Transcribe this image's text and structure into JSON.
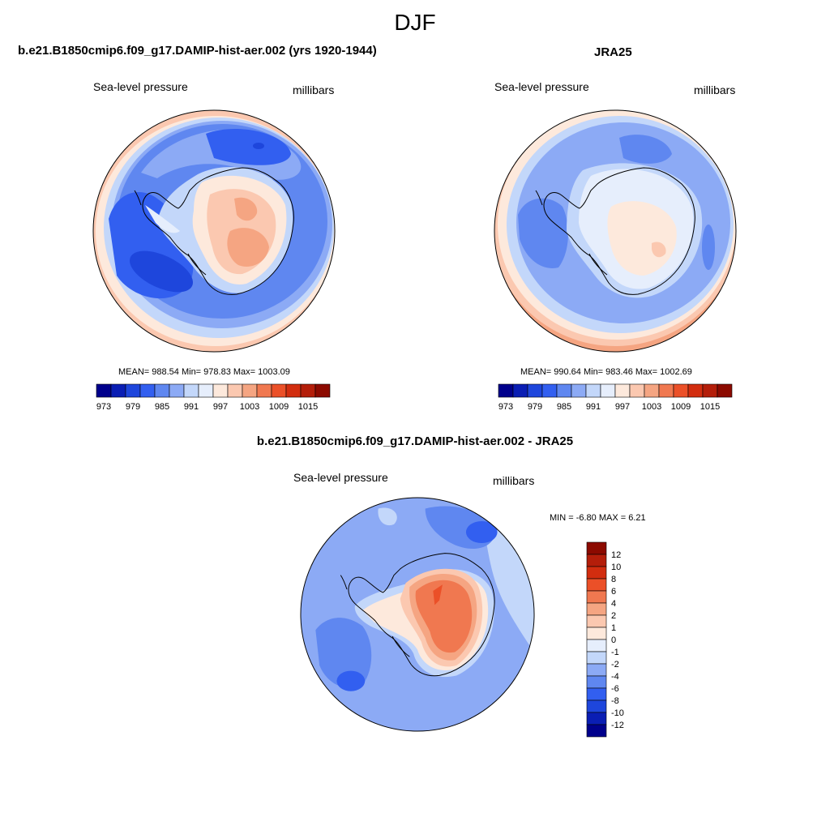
{
  "figure_title": "DJF",
  "panel_model": {
    "title": "b.e21.B1850cmip6.f09_g17.DAMIP-hist-aer.002 (yrs 1920-1944)",
    "field_label": "Sea-level pressure",
    "units": "millibars",
    "stats": "MEAN= 988.54  Min= 978.83  Max= 1003.09"
  },
  "panel_obs": {
    "title": "JRA25",
    "field_label": "Sea-level pressure",
    "units": "millibars",
    "stats": "MEAN= 990.64  Min= 983.46  Max= 1002.69"
  },
  "panel_diff": {
    "title": "b.e21.B1850cmip6.f09_g17.DAMIP-hist-aer.002 - JRA25",
    "field_label": "Sea-level pressure",
    "units": "millibars",
    "stats": "MIN =  -6.80 MAX =   6.21"
  },
  "colorbar_abs": {
    "colors": [
      "#00008c",
      "#0a1eb4",
      "#1e46dc",
      "#325ff0",
      "#5f87f0",
      "#8caaf5",
      "#c3d7fa",
      "#e6eefc",
      "#fde9dc",
      "#fbc8b0",
      "#f5a582",
      "#f07850",
      "#eb5028",
      "#d22d0f",
      "#b41e0a",
      "#8c0a00"
    ],
    "tick_labels": [
      "973",
      "979",
      "985",
      "991",
      "997",
      "1003",
      "1009",
      "1015"
    ]
  },
  "colorbar_diff": {
    "colors": [
      "#8c0a00",
      "#b41e0a",
      "#d22d0f",
      "#eb5028",
      "#f07850",
      "#f5a582",
      "#fbc8b0",
      "#fde9dc",
      "#e6eefc",
      "#c3d7fa",
      "#8caaf5",
      "#5f87f0",
      "#325ff0",
      "#1e46dc",
      "#0a1eb4",
      "#00008c"
    ],
    "tick_labels": [
      "12",
      "10",
      "8",
      "6",
      "4",
      "2",
      "1",
      "0",
      "-1",
      "-2",
      "-4",
      "-6",
      "-8",
      "-10",
      "-12"
    ]
  },
  "chart_data": [
    {
      "type": "heatmap",
      "title": "b.e21.B1850cmip6.f09_g17.DAMIP-hist-aer.002 (yrs 1920-1944)",
      "variable": "Sea-level pressure",
      "units": "millibars",
      "season": "DJF",
      "projection": "south polar stereographic",
      "mean": 988.54,
      "min": 978.83,
      "max": 1003.09,
      "contour_levels": [
        973,
        976,
        979,
        982,
        985,
        988,
        991,
        994,
        997,
        1000,
        1003,
        1006,
        1009,
        1012,
        1015
      ]
    },
    {
      "type": "heatmap",
      "title": "JRA25",
      "variable": "Sea-level pressure",
      "units": "millibars",
      "season": "DJF",
      "projection": "south polar stereographic",
      "mean": 990.64,
      "min": 983.46,
      "max": 1002.69,
      "contour_levels": [
        973,
        976,
        979,
        982,
        985,
        988,
        991,
        994,
        997,
        1000,
        1003,
        1006,
        1009,
        1012,
        1015
      ]
    },
    {
      "type": "heatmap",
      "title": "b.e21.B1850cmip6.f09_g17.DAMIP-hist-aer.002 - JRA25",
      "variable": "Sea-level pressure",
      "units": "millibars",
      "season": "DJF",
      "projection": "south polar stereographic",
      "min": -6.8,
      "max": 6.21,
      "contour_levels": [
        -12,
        -10,
        -8,
        -6,
        -4,
        -2,
        -1,
        0,
        1,
        2,
        4,
        6,
        8,
        10,
        12
      ]
    }
  ]
}
